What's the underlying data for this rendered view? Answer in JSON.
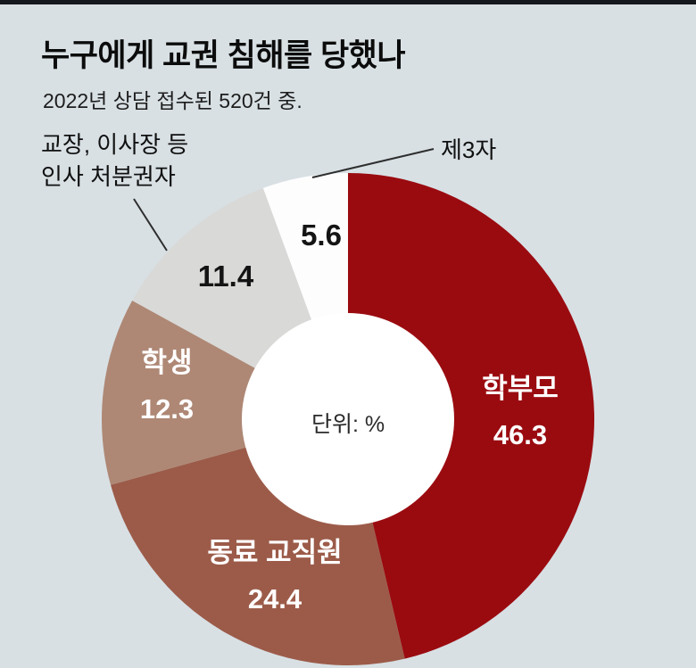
{
  "page": {
    "background_color": "#d8e0e4",
    "top_rule_color": "#15181c"
  },
  "header": {
    "title": "누구에게 교권 침해를 당했나",
    "subtitle": "2022년 상담 접수된 520건 중."
  },
  "callouts": {
    "principal": {
      "line1": "교장, 이사장 등",
      "line2": "인사 처분권자"
    }
  },
  "chart_data": {
    "type": "pie",
    "subtype": "donut",
    "title": "누구에게 교권 침해를 당했나",
    "subtitle": "2022년 상담 접수된 520건 중.",
    "unit_label": "단위: %",
    "start_angle_deg": 0,
    "direction": "clockwise",
    "donut_hole_ratio": 0.43,
    "legend": "none (labels on chart)",
    "categories": [
      "학부모",
      "동료 교직원",
      "학생",
      "교장, 이사장 등 인사 처분권자",
      "제3자"
    ],
    "values": [
      46.3,
      24.4,
      12.3,
      11.4,
      5.6
    ],
    "colors": [
      "#9a0b10",
      "#9c5b49",
      "#ae8875",
      "#d9d9d7",
      "#fdfdfd"
    ],
    "hole_color": "#ffffff"
  }
}
